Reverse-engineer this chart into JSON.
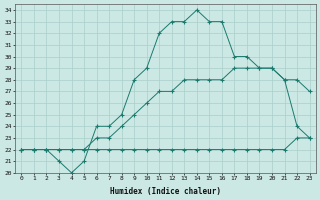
{
  "xlabel": "Humidex (Indice chaleur)",
  "bg_color": "#cce8e4",
  "grid_color": "#aacfcb",
  "line_color": "#1a7a6e",
  "xlim": [
    -0.5,
    23.5
  ],
  "ylim": [
    20,
    34.5
  ],
  "yticks": [
    20,
    21,
    22,
    23,
    24,
    25,
    26,
    27,
    28,
    29,
    30,
    31,
    32,
    33,
    34
  ],
  "xticks": [
    0,
    1,
    2,
    3,
    4,
    5,
    6,
    7,
    8,
    9,
    10,
    11,
    12,
    13,
    14,
    15,
    16,
    17,
    18,
    19,
    20,
    21,
    22,
    23
  ],
  "series": [
    {
      "x": [
        0,
        1,
        2,
        3,
        4,
        5,
        6,
        7,
        8,
        9,
        10,
        11,
        12,
        13,
        14,
        15,
        16,
        17,
        18,
        19,
        20,
        21,
        22,
        23
      ],
      "y": [
        22,
        22,
        22,
        21,
        20,
        21,
        24,
        24,
        25,
        28,
        29,
        32,
        33,
        33,
        34,
        33,
        33,
        30,
        30,
        29,
        29,
        28,
        24,
        23
      ]
    },
    {
      "x": [
        0,
        1,
        2,
        3,
        4,
        5,
        6,
        7,
        8,
        9,
        10,
        11,
        12,
        13,
        14,
        15,
        16,
        17,
        18,
        19,
        20,
        21,
        22,
        23
      ],
      "y": [
        22,
        22,
        22,
        22,
        22,
        22,
        23,
        23,
        24,
        25,
        26,
        27,
        27,
        28,
        28,
        28,
        28,
        29,
        29,
        29,
        29,
        28,
        28,
        27
      ]
    },
    {
      "x": [
        0,
        1,
        2,
        3,
        4,
        5,
        6,
        7,
        8,
        9,
        10,
        11,
        12,
        13,
        14,
        15,
        16,
        17,
        18,
        19,
        20,
        21,
        22,
        23
      ],
      "y": [
        22,
        22,
        22,
        22,
        22,
        22,
        22,
        22,
        22,
        22,
        22,
        22,
        22,
        22,
        22,
        22,
        22,
        22,
        22,
        22,
        22,
        22,
        23,
        23
      ]
    }
  ]
}
